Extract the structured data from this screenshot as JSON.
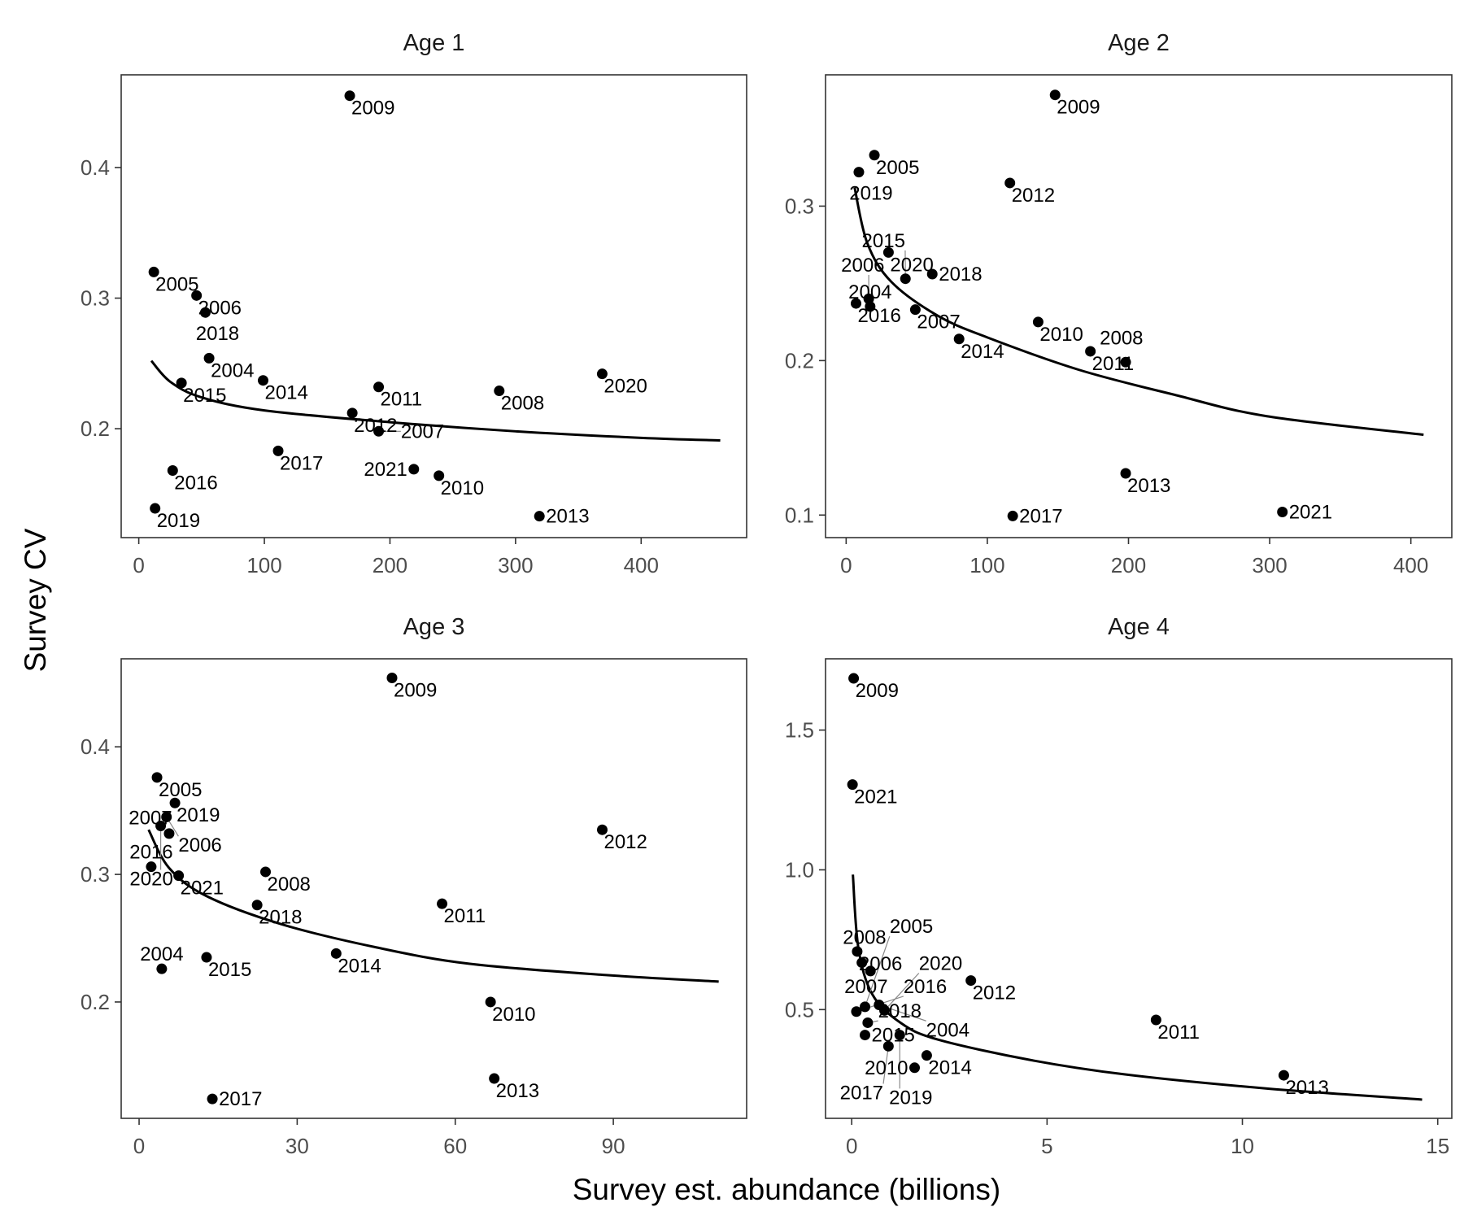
{
  "xlabel": "Survey est. abundance (billions)",
  "ylabel": "Survey CV",
  "chart_data": [
    {
      "type": "scatter",
      "title": "Age 1",
      "xlim": [
        -14,
        484
      ],
      "ylim": [
        0.1166,
        0.471
      ],
      "xticks": [
        0,
        100,
        200,
        300,
        400
      ],
      "xtick_labels": [
        "0",
        "100",
        "200",
        "300",
        "400"
      ],
      "yticks": [
        0.2,
        0.3,
        0.4
      ],
      "ytick_labels": [
        "0.2",
        "0.3",
        "0.4"
      ],
      "points": [
        {
          "label": "2009",
          "x": 168,
          "y": 0.455
        },
        {
          "label": "2005",
          "x": 12,
          "y": 0.32
        },
        {
          "label": "2006",
          "x": 46,
          "y": 0.302
        },
        {
          "label": "2018",
          "x": 53,
          "y": 0.289
        },
        {
          "label": "2004",
          "x": 56,
          "y": 0.254
        },
        {
          "label": "2015",
          "x": 34,
          "y": 0.235
        },
        {
          "label": "2014",
          "x": 99,
          "y": 0.237
        },
        {
          "label": "2011",
          "x": 191,
          "y": 0.232
        },
        {
          "label": "2012",
          "x": 170,
          "y": 0.212
        },
        {
          "label": "2007",
          "x": 191,
          "y": 0.198
        },
        {
          "label": "2008",
          "x": 287,
          "y": 0.229
        },
        {
          "label": "2020",
          "x": 369,
          "y": 0.242
        },
        {
          "label": "2017",
          "x": 111,
          "y": 0.183
        },
        {
          "label": "2016",
          "x": 27,
          "y": 0.168
        },
        {
          "label": "2021",
          "x": 219,
          "y": 0.169
        },
        {
          "label": "2010",
          "x": 239,
          "y": 0.164
        },
        {
          "label": "2019",
          "x": 13,
          "y": 0.139
        },
        {
          "label": "2013",
          "x": 319,
          "y": 0.133
        }
      ],
      "curve": {
        "x": [
          10,
          25,
          50,
          100,
          200,
          300,
          400,
          463
        ],
        "y": [
          0.252,
          0.236,
          0.224,
          0.214,
          0.205,
          0.198,
          0.193,
          0.191
        ]
      }
    },
    {
      "type": "scatter",
      "title": "Age 2",
      "xlim": [
        -14.6,
        429
      ],
      "ylim": [
        0.0854,
        0.385
      ],
      "xticks": [
        0,
        100,
        200,
        300,
        400
      ],
      "xtick_labels": [
        "0",
        "100",
        "200",
        "300",
        "400"
      ],
      "yticks": [
        0.1,
        0.2,
        0.3
      ],
      "ytick_labels": [
        "0.1",
        "0.2",
        "0.3"
      ],
      "points": [
        {
          "label": "2009",
          "x": 148,
          "y": 0.372
        },
        {
          "label": "2005",
          "x": 20,
          "y": 0.333
        },
        {
          "label": "2019",
          "x": 9,
          "y": 0.322
        },
        {
          "label": "2012",
          "x": 116,
          "y": 0.315
        },
        {
          "label": "2020",
          "x": 30,
          "y": 0.27
        },
        {
          "label": "2018",
          "x": 61,
          "y": 0.256
        },
        {
          "label": "2015",
          "x": 42,
          "y": 0.253
        },
        {
          "label": "2016",
          "x": 7,
          "y": 0.237
        },
        {
          "label": "2006",
          "x": 16,
          "y": 0.24
        },
        {
          "label": "2004",
          "x": 17,
          "y": 0.235
        },
        {
          "label": "2007",
          "x": 49,
          "y": 0.233
        },
        {
          "label": "2010",
          "x": 136,
          "y": 0.225
        },
        {
          "label": "2014",
          "x": 80,
          "y": 0.214
        },
        {
          "label": "2011",
          "x": 173,
          "y": 0.206
        },
        {
          "label": "2008",
          "x": 198,
          "y": 0.199
        },
        {
          "label": "2013",
          "x": 198,
          "y": 0.127
        },
        {
          "label": "2017",
          "x": 118,
          "y": 0.0994
        },
        {
          "label": "2021",
          "x": 309,
          "y": 0.102
        }
      ],
      "curve": {
        "x": [
          6,
          15,
          32,
          65,
          100,
          165,
          232,
          298,
          409
        ],
        "y": [
          0.312,
          0.276,
          0.251,
          0.229,
          0.215,
          0.194,
          0.178,
          0.164,
          0.152
        ]
      }
    },
    {
      "type": "scatter",
      "title": "Age 3",
      "xlim": [
        -3.4,
        115.3
      ],
      "ylim": [
        0.1088,
        0.469
      ],
      "xticks": [
        0,
        30,
        60,
        90
      ],
      "xtick_labels": [
        "0",
        "30",
        "60",
        "90"
      ],
      "yticks": [
        0.2,
        0.3,
        0.4
      ],
      "ytick_labels": [
        "0.2",
        "0.3",
        "0.4"
      ],
      "points": [
        {
          "label": "2009",
          "x": 48,
          "y": 0.454
        },
        {
          "label": "2005",
          "x": 3.4,
          "y": 0.376
        },
        {
          "label": "2019",
          "x": 6.8,
          "y": 0.356
        },
        {
          "label": "2006",
          "x": 5.2,
          "y": 0.345
        },
        {
          "label": "2020",
          "x": 4.1,
          "y": 0.338
        },
        {
          "label": "2007",
          "x": 5.7,
          "y": 0.332
        },
        {
          "label": "2012",
          "x": 87.9,
          "y": 0.335
        },
        {
          "label": "2016",
          "x": 2.3,
          "y": 0.306
        },
        {
          "label": "2021",
          "x": 7.5,
          "y": 0.299
        },
        {
          "label": "2008",
          "x": 24,
          "y": 0.302
        },
        {
          "label": "2018",
          "x": 22.4,
          "y": 0.276
        },
        {
          "label": "2011",
          "x": 57.5,
          "y": 0.277
        },
        {
          "label": "2014",
          "x": 37.4,
          "y": 0.238
        },
        {
          "label": "2015",
          "x": 12.8,
          "y": 0.235
        },
        {
          "label": "2004",
          "x": 4.3,
          "y": 0.226
        },
        {
          "label": "2010",
          "x": 66.7,
          "y": 0.2
        },
        {
          "label": "2013",
          "x": 67.4,
          "y": 0.14
        },
        {
          "label": "2017",
          "x": 13.9,
          "y": 0.124
        }
      ],
      "curve": {
        "x": [
          1.8,
          5.7,
          12.8,
          27,
          44.8,
          62.6,
          89,
          110
        ],
        "y": [
          0.335,
          0.305,
          0.283,
          0.261,
          0.243,
          0.23,
          0.221,
          0.216
        ]
      }
    },
    {
      "type": "scatter",
      "title": "Age 4",
      "xlim": [
        -0.67,
        15.36
      ],
      "ylim": [
        0.111,
        1.755
      ],
      "xticks": [
        0,
        5,
        10,
        15
      ],
      "xtick_labels": [
        "0",
        "5",
        "10",
        "15"
      ],
      "yticks": [
        0.5,
        1.0,
        1.5
      ],
      "ytick_labels": [
        "0.5",
        "1.0",
        "1.5"
      ],
      "points": [
        {
          "label": "2009",
          "x": 0.05,
          "y": 1.685
        },
        {
          "label": "2021",
          "x": 0.02,
          "y": 1.305
        },
        {
          "label": "2006",
          "x": 0.14,
          "y": 0.708
        },
        {
          "label": "2007",
          "x": 0.26,
          "y": 0.668
        },
        {
          "label": "2008",
          "x": 0.48,
          "y": 0.638
        },
        {
          "label": "2012",
          "x": 3.05,
          "y": 0.604
        },
        {
          "label": "2016",
          "x": 0.12,
          "y": 0.493
        },
        {
          "label": "2005",
          "x": 0.34,
          "y": 0.51
        },
        {
          "label": "2004",
          "x": 0.7,
          "y": 0.517
        },
        {
          "label": "2020",
          "x": 0.84,
          "y": 0.497
        },
        {
          "label": "2018",
          "x": 0.41,
          "y": 0.453
        },
        {
          "label": "2015",
          "x": 0.34,
          "y": 0.409
        },
        {
          "label": "2019",
          "x": 1.23,
          "y": 0.409
        },
        {
          "label": "2017",
          "x": 0.94,
          "y": 0.369
        },
        {
          "label": "2014",
          "x": 1.92,
          "y": 0.336
        },
        {
          "label": "2010",
          "x": 1.61,
          "y": 0.292
        },
        {
          "label": "2011",
          "x": 7.79,
          "y": 0.463
        },
        {
          "label": "2013",
          "x": 11.06,
          "y": 0.265
        }
      ],
      "curve": {
        "x": [
          0.03,
          0.17,
          0.53,
          1.25,
          2.2,
          4.6,
          7.0,
          10.6,
          14.6
        ],
        "y": [
          0.983,
          0.721,
          0.554,
          0.453,
          0.393,
          0.319,
          0.268,
          0.218,
          0.178
        ]
      }
    }
  ]
}
